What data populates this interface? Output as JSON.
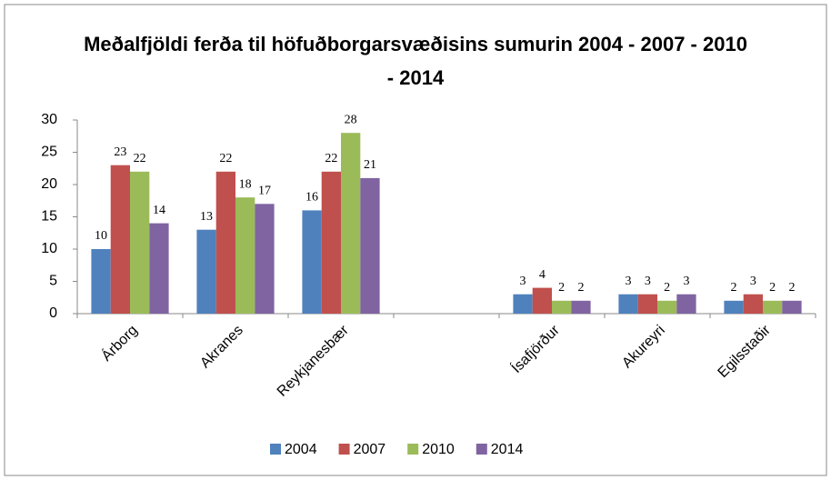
{
  "chart_data": {
    "type": "bar",
    "title": "Meðalfjöldi ferða til höfuðborgarsvæðisins sumurin 2004 - 2007 - 2010 - 2014",
    "categories": [
      "Árborg",
      "Akranes",
      "Reykjanesbær",
      null,
      "Ísafjörður",
      "Akureyri",
      "Egilsstaðir"
    ],
    "series": [
      {
        "name": "2004",
        "color": "#4f81bd",
        "values": [
          10,
          13,
          16,
          null,
          3,
          3,
          2
        ]
      },
      {
        "name": "2007",
        "color": "#c0504d",
        "values": [
          23,
          22,
          22,
          null,
          4,
          3,
          3
        ]
      },
      {
        "name": "2010",
        "color": "#9bbb59",
        "values": [
          22,
          18,
          28,
          null,
          2,
          2,
          2
        ]
      },
      {
        "name": "2014",
        "color": "#8064a2",
        "values": [
          14,
          17,
          21,
          null,
          2,
          3,
          2
        ]
      }
    ],
    "ylim": [
      0,
      30
    ],
    "yticks": [
      0,
      5,
      10,
      15,
      20,
      25,
      30
    ],
    "grid": false,
    "legend": "bottom"
  }
}
